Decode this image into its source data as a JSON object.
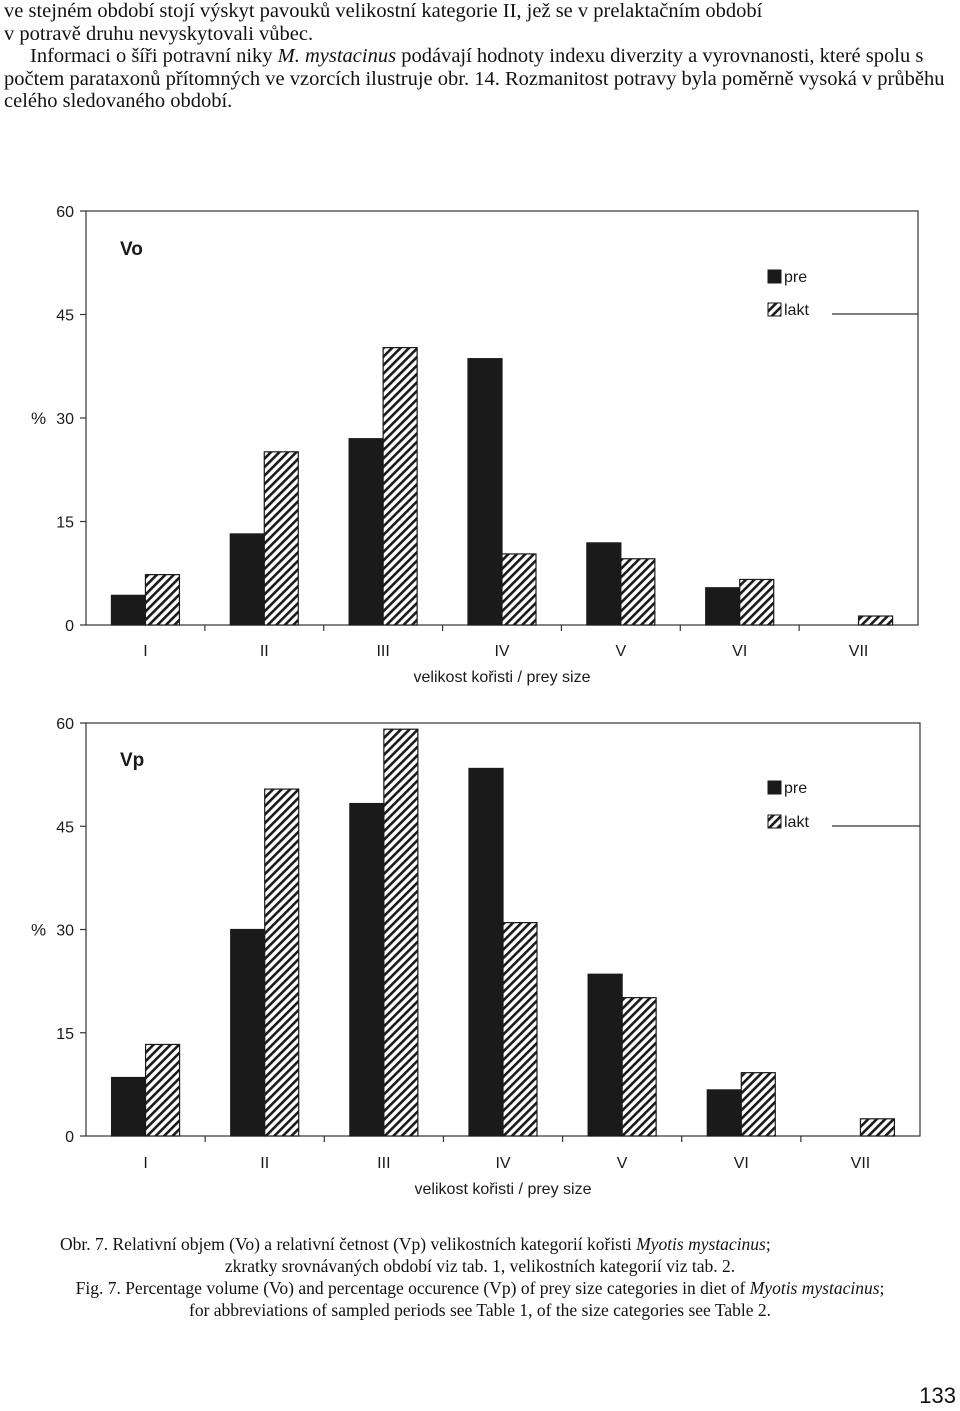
{
  "text": {
    "para1_line1": "ve stejném období stojí výskyt pavouků velikostní kategorie II, jež se v prelaktačním období",
    "para1_line2": "v potravě druhu nevyskytovali vůbec.",
    "para2_a": "Informaci o šíři potravní niky ",
    "para2_italic": "M. mystacinus",
    "para2_b": " podávají hodnoty indexu diverzity a vyrovnanosti, které spolu s počtem parataxonů přítomných ve vzorcích ilustruje obr. 14. Rozmanitost potravy byla poměrně vysoká v průběhu celého sledovaného období."
  },
  "caption": {
    "cz_a": "Obr. 7. Relativní objem (Vo) a relativní četnost (Vp) velikostních kategorií kořisti ",
    "cz_italic": "Myotis mystacinus",
    "cz_b": ";",
    "cz_line2": "zkratky srovnávaných období viz tab. 1, velikostních kategorií viz tab. 2.",
    "en_a": "Fig. 7. Percentage volume (Vo) and percentage occurence (Vp) of prey size categories in diet of ",
    "en_italic": "Myotis mystacinus",
    "en_b": ";",
    "en_line2": "for abbreviations of sampled periods see Table 1, of the size categories see Table 2."
  },
  "page_number": "133",
  "colors": {
    "pre": "#1a1a1a",
    "lakt_hatch": "#1a1a1a",
    "background": "#ffffff"
  },
  "chart_data": [
    {
      "type": "bar",
      "panel_label": "Vo",
      "categories": [
        "I",
        "II",
        "III",
        "IV",
        "V",
        "VI",
        "VII"
      ],
      "series": [
        {
          "name": "pre",
          "fill": "solid",
          "values": [
            4.3,
            13.2,
            27.0,
            38.6,
            11.9,
            5.4,
            0
          ]
        },
        {
          "name": "lakt",
          "fill": "hatched",
          "values": [
            7.3,
            25.1,
            40.2,
            10.3,
            9.6,
            6.6,
            1.3
          ]
        }
      ],
      "xlabel": "velikost kořisti / prey size",
      "ylabel": "%",
      "ylim": [
        0,
        60
      ],
      "yticks": [
        0,
        15,
        30,
        45,
        60
      ],
      "legend_position": "top-right",
      "grid": false
    },
    {
      "type": "bar",
      "panel_label": "Vp",
      "categories": [
        "I",
        "II",
        "III",
        "IV",
        "V",
        "VI",
        "VII"
      ],
      "series": [
        {
          "name": "pre",
          "fill": "solid",
          "values": [
            8.5,
            30.0,
            48.3,
            53.4,
            23.5,
            6.7,
            0
          ]
        },
        {
          "name": "lakt",
          "fill": "hatched",
          "values": [
            13.3,
            50.4,
            59.1,
            31.0,
            20.1,
            9.2,
            2.5
          ]
        }
      ],
      "xlabel": "velikost kořisti / prey size",
      "ylabel": "%",
      "ylim": [
        0,
        60
      ],
      "yticks": [
        0,
        15,
        30,
        45,
        60
      ],
      "legend_position": "top-right",
      "grid": false
    }
  ]
}
